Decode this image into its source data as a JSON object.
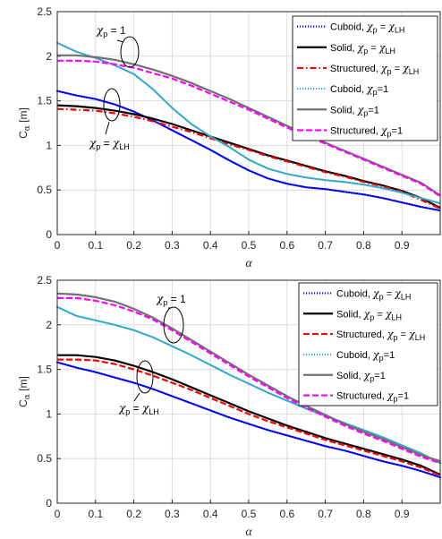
{
  "chart_data": [
    {
      "type": "line",
      "xlabel": "α",
      "ylabel": "C_α [m]",
      "xlim": [
        0,
        1
      ],
      "ylim": [
        0,
        2.5
      ],
      "xticks": [
        "0",
        "0.1",
        "0.2",
        "0.3",
        "0.4",
        "0.5",
        "0.6",
        "0.7",
        "0.8",
        "0.9"
      ],
      "yticks": [
        "0",
        "0.5",
        "1",
        "1.5",
        "2",
        "2.5"
      ],
      "grid": true,
      "legend_position": "top-right",
      "x": [
        0,
        0.05,
        0.1,
        0.15,
        0.2,
        0.25,
        0.3,
        0.35,
        0.4,
        0.45,
        0.5,
        0.55,
        0.6,
        0.65,
        0.7,
        0.75,
        0.8,
        0.85,
        0.9,
        0.95,
        1.0
      ],
      "series": [
        {
          "name": "Cuboid, χp = χLH",
          "color": "#0000ff",
          "style": "dotted",
          "values": [
            1.61,
            1.56,
            1.52,
            1.46,
            1.38,
            1.28,
            1.17,
            1.06,
            0.95,
            0.83,
            0.72,
            0.63,
            0.57,
            0.53,
            0.51,
            0.48,
            0.45,
            0.41,
            0.36,
            0.31,
            0.27
          ]
        },
        {
          "name": "Solid, χp = χLH",
          "color": "#000000",
          "style": "solid",
          "values": [
            1.45,
            1.44,
            1.42,
            1.39,
            1.35,
            1.3,
            1.24,
            1.17,
            1.1,
            1.03,
            0.96,
            0.89,
            0.83,
            0.77,
            0.71,
            0.66,
            0.6,
            0.55,
            0.49,
            0.41,
            0.3
          ]
        },
        {
          "name": "Structured, χp = χLH",
          "color": "#ff0000",
          "style": "dashdot",
          "values": [
            1.41,
            1.4,
            1.39,
            1.36,
            1.32,
            1.27,
            1.21,
            1.15,
            1.08,
            1.01,
            0.95,
            0.88,
            0.82,
            0.76,
            0.7,
            0.65,
            0.59,
            0.54,
            0.48,
            0.39,
            0.29
          ]
        },
        {
          "name": "Cuboid, χp=1",
          "color": "#33aacc",
          "style": "dotted",
          "values": [
            2.15,
            2.05,
            1.98,
            1.9,
            1.8,
            1.63,
            1.42,
            1.24,
            1.1,
            0.98,
            0.84,
            0.74,
            0.68,
            0.64,
            0.61,
            0.59,
            0.56,
            0.52,
            0.47,
            0.41,
            0.35
          ]
        },
        {
          "name": "Solid, χp=1",
          "color": "#707070",
          "style": "solid",
          "values": [
            2.01,
            2.01,
            1.99,
            1.96,
            1.91,
            1.85,
            1.78,
            1.7,
            1.61,
            1.52,
            1.42,
            1.32,
            1.22,
            1.12,
            1.03,
            0.94,
            0.85,
            0.76,
            0.67,
            0.58,
            0.44
          ]
        },
        {
          "name": "Structured, χp=1",
          "color": "#ff00ff",
          "style": "dashed",
          "values": [
            1.95,
            1.95,
            1.94,
            1.91,
            1.87,
            1.81,
            1.75,
            1.67,
            1.58,
            1.49,
            1.4,
            1.3,
            1.2,
            1.11,
            1.02,
            0.93,
            0.84,
            0.75,
            0.66,
            0.57,
            0.43
          ]
        }
      ],
      "annotations": [
        "χp = 1",
        "χp = χLH"
      ]
    },
    {
      "type": "line",
      "xlabel": "α",
      "ylabel": "C_α [m]",
      "xlim": [
        0,
        1
      ],
      "ylim": [
        0,
        2.5
      ],
      "xticks": [
        "0",
        "0.1",
        "0.2",
        "0.3",
        "0.4",
        "0.5",
        "0.6",
        "0.7",
        "0.8",
        "0.9"
      ],
      "yticks": [
        "0",
        "0.5",
        "1",
        "1.5",
        "2",
        "2.5"
      ],
      "grid": true,
      "legend_position": "top-right",
      "x": [
        0,
        0.05,
        0.1,
        0.15,
        0.2,
        0.25,
        0.3,
        0.35,
        0.4,
        0.45,
        0.5,
        0.55,
        0.6,
        0.65,
        0.7,
        0.75,
        0.8,
        0.85,
        0.9,
        0.95,
        1.0
      ],
      "series": [
        {
          "name": "Cuboid, χp = χLH",
          "color": "#0000ff",
          "style": "dotted",
          "values": [
            1.58,
            1.52,
            1.47,
            1.41,
            1.35,
            1.28,
            1.2,
            1.12,
            1.04,
            0.96,
            0.89,
            0.82,
            0.76,
            0.7,
            0.64,
            0.59,
            0.53,
            0.47,
            0.42,
            0.36,
            0.29
          ]
        },
        {
          "name": "Solid, χp = χLH",
          "color": "#000000",
          "style": "solid",
          "values": [
            1.66,
            1.66,
            1.64,
            1.6,
            1.54,
            1.47,
            1.39,
            1.3,
            1.21,
            1.12,
            1.03,
            0.95,
            0.87,
            0.8,
            0.73,
            0.67,
            0.61,
            0.55,
            0.49,
            0.42,
            0.32
          ]
        },
        {
          "name": "Structured, χp = χLH",
          "color": "#ff0000",
          "style": "dashed",
          "values": [
            1.61,
            1.61,
            1.6,
            1.56,
            1.5,
            1.43,
            1.35,
            1.27,
            1.18,
            1.09,
            1.0,
            0.92,
            0.85,
            0.78,
            0.71,
            0.65,
            0.59,
            0.53,
            0.47,
            0.4,
            0.31
          ]
        },
        {
          "name": "Cuboid, χp=1",
          "color": "#33aacc",
          "style": "dotted",
          "values": [
            2.2,
            2.1,
            2.05,
            2.0,
            1.94,
            1.86,
            1.76,
            1.66,
            1.55,
            1.44,
            1.34,
            1.24,
            1.15,
            1.06,
            0.98,
            0.9,
            0.82,
            0.74,
            0.65,
            0.56,
            0.45
          ]
        },
        {
          "name": "Solid, χp=1",
          "color": "#707070",
          "style": "solid",
          "values": [
            2.35,
            2.34,
            2.31,
            2.26,
            2.18,
            2.08,
            1.96,
            1.83,
            1.7,
            1.57,
            1.44,
            1.32,
            1.2,
            1.09,
            0.99,
            0.89,
            0.8,
            0.72,
            0.63,
            0.54,
            0.47
          ]
        },
        {
          "name": "Structured, χp=1",
          "color": "#ff00ff",
          "style": "dashed",
          "values": [
            2.3,
            2.3,
            2.27,
            2.22,
            2.15,
            2.06,
            1.94,
            1.81,
            1.68,
            1.55,
            1.42,
            1.3,
            1.18,
            1.07,
            0.97,
            0.87,
            0.78,
            0.7,
            0.61,
            0.52,
            0.45
          ]
        }
      ],
      "annotations": [
        "χp = 1",
        "χp = χLH"
      ]
    }
  ]
}
